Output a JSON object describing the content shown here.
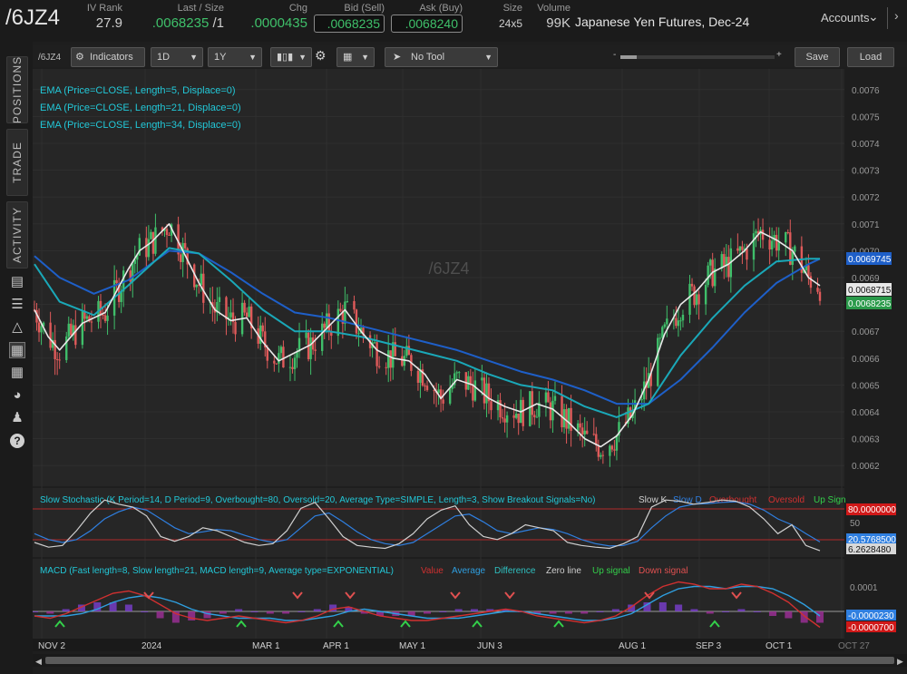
{
  "header": {
    "symbol": "/6JZ4",
    "iv_rank_label": "IV Rank",
    "iv_rank": "27.9",
    "last_size_label": "Last / Size",
    "last": ".0068235",
    "last_size": "/1",
    "chg_label": "Chg",
    "chg": ".0000435",
    "bid_label": "Bid (Sell)",
    "bid": ".0068235",
    "ask_label": "Ask (Buy)",
    "ask": ".0068240",
    "size_label": "Size",
    "size": "24x5",
    "volume_label": "Volume",
    "volume": "99K",
    "description": "Japanese Yen Futures, Dec-24",
    "accounts": "Accounts"
  },
  "rail": {
    "tabs": [
      "POSITIONS",
      "TRADE",
      "ACTIVITY"
    ],
    "icons": [
      "notes-icon",
      "list-icon",
      "alert-icon",
      "chart-icon",
      "grid-icon",
      "gauge-icon",
      "people-icon",
      "help-icon"
    ]
  },
  "toolbar": {
    "symbol": "/6JZ4",
    "indicators": "Indicators",
    "interval": "1D",
    "range": "1Y",
    "tool": "No Tool",
    "zoom_minus": "-",
    "zoom_plus": "+",
    "save": "Save",
    "load": "Load"
  },
  "studies": {
    "ema_lines": [
      {
        "label": "EMA (Price=CLOSE, Length=5, Displace=0)",
        "color": "#e8e8e8"
      },
      {
        "label": "EMA (Price=CLOSE, Length=21, Displace=0)",
        "color": "#1aa8b8"
      },
      {
        "label": "EMA (Price=CLOSE, Length=34, Displace=0)",
        "color": "#1e5fc8"
      }
    ],
    "watermark": "/6JZ4",
    "stoch_title": "Slow Stochastic (K Period=14, D Period=9, Overbought=80, Oversold=20, Average Type=SIMPLE, Length=3, Show Breakout Signals=No)",
    "stoch_legend": [
      {
        "label": "Slow K",
        "color": "#cfcfcf"
      },
      {
        "label": "Slow D",
        "color": "#2f7fe0"
      },
      {
        "label": "Overbought",
        "color": "#d03030"
      },
      {
        "label": "Oversold",
        "color": "#d03030"
      },
      {
        "label": "Up Sign",
        "color": "#33d04a"
      }
    ],
    "macd_title": "MACD (Fast length=8, Slow length=21, MACD length=9, Average type=EXPONENTIAL)",
    "macd_legend": [
      {
        "label": "Value",
        "color": "#d03030"
      },
      {
        "label": "Average",
        "color": "#2f9fe0"
      },
      {
        "label": "Difference",
        "color": "#2fc0c0"
      },
      {
        "label": "Zero line",
        "color": "#cfcfcf"
      },
      {
        "label": "Up signal",
        "color": "#33d04a"
      },
      {
        "label": "Down signal",
        "color": "#e05050"
      }
    ]
  },
  "axes": {
    "price_ticks": [
      "0.0076",
      "0.0075",
      "0.0074",
      "0.0073",
      "0.0072",
      "0.0071",
      "0.0070",
      "0.0069",
      "0.0068",
      "0.0067",
      "0.0066",
      "0.0065",
      "0.0064",
      "0.0063",
      "0.0062"
    ],
    "price_badges": [
      {
        "value": "0.0069745",
        "color": "#1e5fc8"
      },
      {
        "value": "0.0068715",
        "color": "#e8e8e8"
      },
      {
        "value": "0.0068235",
        "color": "#2a9a4a"
      }
    ],
    "stoch_labels": [
      "80.0000000",
      "50",
      "20.5768500",
      "6.2628480"
    ],
    "macd_labels": [
      "0.0001",
      "-0.0000230",
      "-0.0000700"
    ],
    "date_labels": [
      "NOV 2",
      "2024",
      "MAR 1",
      "APR 1",
      "MAY 1",
      "JUN 3",
      "AUG 1",
      "SEP 3",
      "OCT 1",
      "OCT 27"
    ]
  },
  "chart_data": {
    "type": "candlestick",
    "symbol": "/6JZ4",
    "period": "1D",
    "ylim": [
      0.00615,
      0.00765
    ],
    "ema5": [
      [
        "2023-10-30",
        0.00678
      ],
      [
        "2023-11-05",
        0.00668
      ],
      [
        "2023-11-10",
        0.00663
      ],
      [
        "2023-11-20",
        0.00673
      ],
      [
        "2023-11-30",
        0.00677
      ],
      [
        "2023-12-05",
        0.00685
      ],
      [
        "2023-12-10",
        0.00693
      ],
      [
        "2023-12-15",
        0.007
      ],
      [
        "2023-12-20",
        0.00703
      ],
      [
        "2023-12-28",
        0.0071
      ],
      [
        "2024-01-03",
        0.007
      ],
      [
        "2024-01-10",
        0.00688
      ],
      [
        "2024-01-17",
        0.00678
      ],
      [
        "2024-01-24",
        0.00674
      ],
      [
        "2024-01-31",
        0.00675
      ],
      [
        "2024-02-07",
        0.00666
      ],
      [
        "2024-02-14",
        0.00659
      ],
      [
        "2024-02-21",
        0.00662
      ],
      [
        "2024-02-28",
        0.00665
      ],
      [
        "2024-03-07",
        0.00672
      ],
      [
        "2024-03-14",
        0.00678
      ],
      [
        "2024-03-21",
        0.0067
      ],
      [
        "2024-03-28",
        0.00663
      ],
      [
        "2024-04-04",
        0.0066
      ],
      [
        "2024-04-11",
        0.00659
      ],
      [
        "2024-04-18",
        0.00654
      ],
      [
        "2024-04-25",
        0.00645
      ],
      [
        "2024-05-02",
        0.00652
      ],
      [
        "2024-05-09",
        0.0065
      ],
      [
        "2024-05-16",
        0.00645
      ],
      [
        "2024-05-23",
        0.00642
      ],
      [
        "2024-05-30",
        0.0064
      ],
      [
        "2024-06-06",
        0.00643
      ],
      [
        "2024-06-13",
        0.00641
      ],
      [
        "2024-06-20",
        0.00636
      ],
      [
        "2024-06-27",
        0.0063
      ],
      [
        "2024-07-04",
        0.00627
      ],
      [
        "2024-07-11",
        0.00631
      ],
      [
        "2024-07-18",
        0.00639
      ],
      [
        "2024-07-25",
        0.00652
      ],
      [
        "2024-08-01",
        0.00669
      ],
      [
        "2024-08-08",
        0.0068
      ],
      [
        "2024-08-15",
        0.00685
      ],
      [
        "2024-08-22",
        0.00692
      ],
      [
        "2024-08-29",
        0.00695
      ],
      [
        "2024-09-05",
        0.007
      ],
      [
        "2024-09-12",
        0.00707
      ],
      [
        "2024-09-19",
        0.00704
      ],
      [
        "2024-09-26",
        0.007
      ],
      [
        "2024-10-03",
        0.0069
      ],
      [
        "2024-10-08",
        0.00687
      ]
    ],
    "ema21": [
      [
        "2023-10-30",
        0.00695
      ],
      [
        "2023-11-10",
        0.00681
      ],
      [
        "2023-11-25",
        0.00676
      ],
      [
        "2023-12-10",
        0.00687
      ],
      [
        "2023-12-28",
        0.00701
      ],
      [
        "2024-01-10",
        0.00699
      ],
      [
        "2024-01-24",
        0.00689
      ],
      [
        "2024-02-07",
        0.00678
      ],
      [
        "2024-02-21",
        0.0067
      ],
      [
        "2024-03-07",
        0.0067
      ],
      [
        "2024-03-21",
        0.00668
      ],
      [
        "2024-04-04",
        0.00665
      ],
      [
        "2024-04-18",
        0.00662
      ],
      [
        "2024-05-02",
        0.00659
      ],
      [
        "2024-05-16",
        0.00654
      ],
      [
        "2024-05-30",
        0.0065
      ],
      [
        "2024-06-13",
        0.00648
      ],
      [
        "2024-06-27",
        0.00642
      ],
      [
        "2024-07-11",
        0.00638
      ],
      [
        "2024-07-25",
        0.00643
      ],
      [
        "2024-08-08",
        0.00661
      ],
      [
        "2024-08-22",
        0.00675
      ],
      [
        "2024-09-05",
        0.00687
      ],
      [
        "2024-09-19",
        0.00696
      ],
      [
        "2024-10-03",
        0.00697
      ],
      [
        "2024-10-08",
        0.00697
      ]
    ],
    "ema34": [
      [
        "2023-10-30",
        0.00698
      ],
      [
        "2023-11-10",
        0.0069
      ],
      [
        "2023-11-25",
        0.00684
      ],
      [
        "2023-12-10",
        0.00689
      ],
      [
        "2023-12-28",
        0.007
      ],
      [
        "2024-01-10",
        0.00699
      ],
      [
        "2024-01-24",
        0.00692
      ],
      [
        "2024-02-07",
        0.00684
      ],
      [
        "2024-02-21",
        0.00677
      ],
      [
        "2024-03-07",
        0.00675
      ],
      [
        "2024-03-21",
        0.00672
      ],
      [
        "2024-04-04",
        0.00669
      ],
      [
        "2024-04-18",
        0.00666
      ],
      [
        "2024-05-02",
        0.00663
      ],
      [
        "2024-05-16",
        0.00659
      ],
      [
        "2024-05-30",
        0.00655
      ],
      [
        "2024-06-13",
        0.00652
      ],
      [
        "2024-06-27",
        0.00648
      ],
      [
        "2024-07-11",
        0.00643
      ],
      [
        "2024-07-25",
        0.00643
      ],
      [
        "2024-08-08",
        0.00652
      ],
      [
        "2024-08-22",
        0.00664
      ],
      [
        "2024-09-05",
        0.00677
      ],
      [
        "2024-09-19",
        0.00688
      ],
      [
        "2024-10-03",
        0.00695
      ],
      [
        "2024-10-08",
        0.00697
      ]
    ],
    "last_price": 0.0068235,
    "stochastic": {
      "overbought": 80,
      "oversold": 20,
      "slow_k": [
        20,
        12,
        15,
        40,
        70,
        92,
        85,
        80,
        65,
        30,
        22,
        30,
        45,
        40,
        30,
        20,
        15,
        18,
        40,
        78,
        88,
        60,
        30,
        15,
        12,
        10,
        18,
        35,
        60,
        75,
        82,
        50,
        30,
        25,
        35,
        50,
        45,
        40,
        20,
        15,
        12,
        10,
        18,
        30,
        80,
        92,
        90,
        85,
        88,
        92,
        90,
        80,
        60,
        35,
        50,
        15,
        6
      ],
      "slow_d": [
        35,
        25,
        20,
        25,
        40,
        60,
        72,
        80,
        75,
        60,
        45,
        35,
        38,
        42,
        40,
        32,
        25,
        20,
        25,
        45,
        65,
        70,
        55,
        38,
        25,
        18,
        15,
        20,
        35,
        50,
        65,
        68,
        55,
        40,
        35,
        40,
        45,
        42,
        35,
        25,
        18,
        14,
        15,
        22,
        45,
        65,
        80,
        85,
        86,
        88,
        89,
        85,
        75,
        60,
        50,
        35,
        21
      ]
    },
    "macd": {
      "value": [
        -2e-05,
        -3e-05,
        -1e-05,
        2e-05,
        5e-05,
        8e-05,
        9e-05,
        7e-05,
        3e-05,
        -1e-05,
        -3e-05,
        -4e-05,
        -3e-05,
        -2e-05,
        -3e-05,
        -4e-05,
        -5e-05,
        -4e-05,
        -2e-05,
        1e-05,
        2e-05,
        0.0,
        -2e-05,
        -3e-05,
        -4e-05,
        -4e-05,
        -3e-05,
        -2e-05,
        -1e-05,
        0.0,
        1e-05,
        0.0,
        -2e-05,
        -3e-05,
        -4e-05,
        -5e-05,
        -4e-05,
        -2e-05,
        2e-05,
        7e-05,
        0.00011,
        0.00013,
        0.00012,
        0.0001,
        0.0001,
        0.00012,
        0.00011,
        8e-05,
        4e-05,
        -2e-05,
        -7e-05
      ],
      "average": [
        -2e-05,
        -2e-05,
        -2e-05,
        -1e-05,
        1e-05,
        4e-05,
        6e-05,
        7e-05,
        6e-05,
        4e-05,
        1e-05,
        -1e-05,
        -2e-05,
        -3e-05,
        -3e-05,
        -3e-05,
        -4e-05,
        -4e-05,
        -3e-05,
        -2e-05,
        0.0,
        1e-05,
        0.0,
        -1e-05,
        -2e-05,
        -3e-05,
        -3e-05,
        -3e-05,
        -2e-05,
        -1e-05,
        0.0,
        0.0,
        -1e-05,
        -2e-05,
        -3e-05,
        -4e-05,
        -4e-05,
        -3e-05,
        -1e-05,
        3e-05,
        7e-05,
        0.0001,
        0.00011,
        0.00011,
        0.0001,
        0.00011,
        0.00011,
        0.0001,
        7e-05,
        3e-05,
        -2e-05
      ]
    }
  }
}
